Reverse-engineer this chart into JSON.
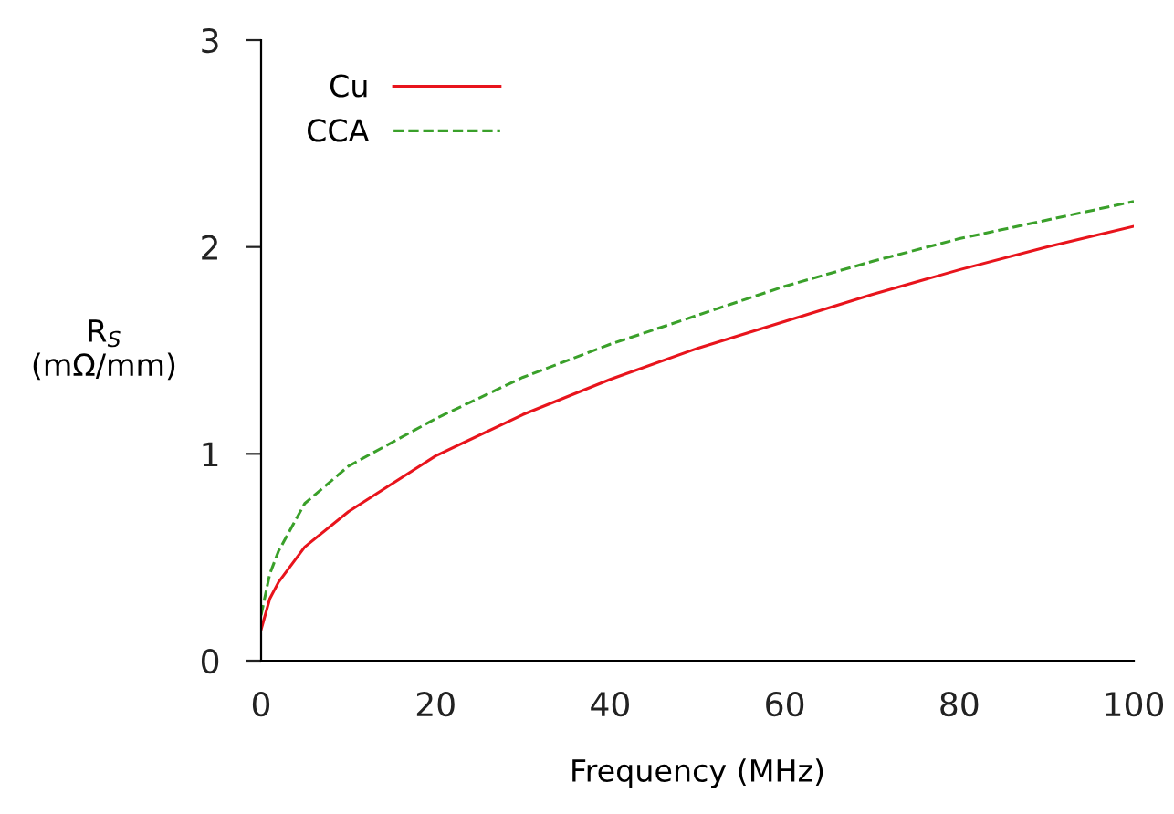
{
  "chart_data": {
    "type": "line",
    "xlabel": "Frequency (MHz)",
    "ylabel": "R$_{S}$\n(mΩ/mm)",
    "x": [
      0,
      1,
      2,
      5,
      10,
      20,
      30,
      40,
      50,
      60,
      70,
      80,
      90,
      100
    ],
    "series": [
      {
        "name": "Cu",
        "color": "#e8141c",
        "line_style": "solid",
        "values": [
          0.15,
          0.3,
          0.38,
          0.55,
          0.72,
          0.99,
          1.19,
          1.36,
          1.51,
          1.64,
          1.77,
          1.89,
          2.0,
          2.1
        ]
      },
      {
        "name": "CCA",
        "color": "#3aa02a",
        "line_style": "dashed",
        "values": [
          0.22,
          0.42,
          0.53,
          0.76,
          0.94,
          1.17,
          1.37,
          1.53,
          1.67,
          1.81,
          1.93,
          2.04,
          2.13,
          2.22
        ]
      }
    ],
    "xlim": [
      0,
      100
    ],
    "xticks": [
      0,
      20,
      40,
      60,
      80,
      100
    ],
    "ylim": [
      0,
      3
    ],
    "yticks": [
      0,
      1,
      2,
      3
    ],
    "grid": false,
    "legend": "top left",
    "marker": "none"
  }
}
